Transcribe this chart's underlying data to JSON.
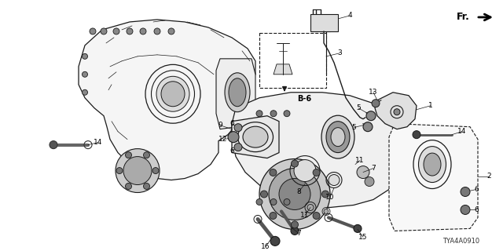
{
  "bg_color": "#ffffff",
  "fig_width": 6.4,
  "fig_height": 3.2,
  "dpi": 100,
  "diagram_code": "TYA4A0910",
  "fr_label": "Fr.",
  "b6_label": "B-6",
  "text_color": "#000000",
  "line_color": "#1a1a1a",
  "gray_fill": "#aaaaaa",
  "dark_fill": "#555555",
  "light_gray": "#cccccc"
}
